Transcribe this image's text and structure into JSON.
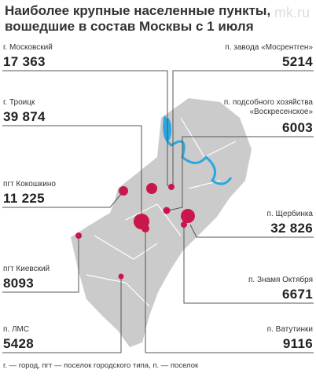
{
  "watermark": "mk.ru",
  "title": "Наиболее крупные населенные пункты, вошедшие в состав Москвы с 1 июля",
  "places": [
    {
      "name": "г. Московский",
      "population": "17 363"
    },
    {
      "name": "г. Троицк",
      "population": "39 874"
    },
    {
      "name": "пгт Кокошкино",
      "population": "11 225"
    },
    {
      "name": "пгт Киевский",
      "population": "8093"
    },
    {
      "name": "п. ЛМС",
      "population": "5428"
    },
    {
      "name": "п. завода «Мосрентген»",
      "population": "5214"
    },
    {
      "name": "п. подсобного хозяйства «Воскресенское»",
      "population": "6003"
    },
    {
      "name": "п. Щербинка",
      "population": "32 826"
    },
    {
      "name": "п. Знамя Октября",
      "population": "6671"
    },
    {
      "name": "п. Ватутинки",
      "population": "9116"
    }
  ],
  "footnote": "г. — город, пгт — поселок городского типа, п. — поселок"
}
